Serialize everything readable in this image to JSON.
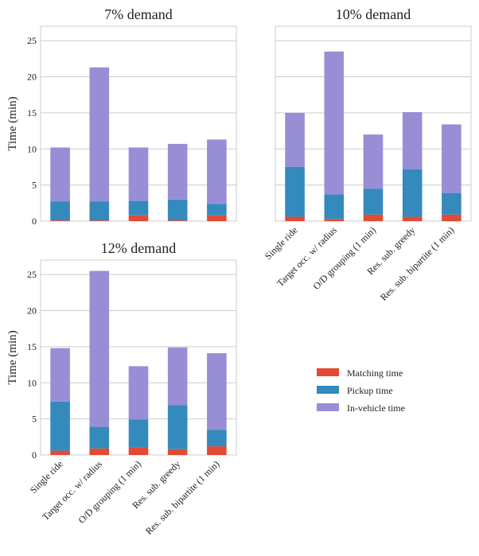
{
  "chart_data": [
    {
      "type": "bar",
      "stacked": true,
      "title": "7% demand",
      "ylabel": "Time (min)",
      "xlabel": "",
      "ylim": [
        0,
        27
      ],
      "yticks": [
        0,
        5,
        10,
        15,
        20,
        25
      ],
      "grid": true,
      "categories": [
        "Single ride",
        "Target occ. w/ radius",
        "O/D grouping (1 min)",
        "Res. sub. greedy",
        "Res. sub. bipartite (1 min)"
      ],
      "show_category_labels": false,
      "show_ytick_labels": true,
      "series": [
        {
          "name": "Matching time",
          "values": [
            0.1,
            0.1,
            0.8,
            0.1,
            0.8
          ]
        },
        {
          "name": "Pickup time",
          "values": [
            2.6,
            2.6,
            2.0,
            2.9,
            1.6
          ]
        },
        {
          "name": "In-vehicle time",
          "values": [
            7.5,
            18.6,
            7.4,
            7.7,
            8.9
          ]
        }
      ]
    },
    {
      "type": "bar",
      "stacked": true,
      "title": "10% demand",
      "ylabel": "",
      "xlabel": "",
      "ylim": [
        0,
        27
      ],
      "yticks": [
        0,
        5,
        10,
        15,
        20,
        25
      ],
      "grid": true,
      "categories": [
        "Single ride",
        "Target occ. w/ radius",
        "O/D grouping (1 min)",
        "Res. sub. greedy",
        "Res. sub. bipartite (1 min)"
      ],
      "show_category_labels": true,
      "show_ytick_labels": false,
      "series": [
        {
          "name": "Matching time",
          "values": [
            0.6,
            0.3,
            0.9,
            0.6,
            0.9
          ]
        },
        {
          "name": "Pickup time",
          "values": [
            6.9,
            3.4,
            3.6,
            6.6,
            3.0
          ]
        },
        {
          "name": "In-vehicle time",
          "values": [
            7.5,
            19.8,
            7.5,
            7.9,
            9.5
          ]
        }
      ]
    },
    {
      "type": "bar",
      "stacked": true,
      "title": "12% demand",
      "ylabel": "Time (min)",
      "xlabel": "",
      "ylim": [
        0,
        27
      ],
      "yticks": [
        0,
        5,
        10,
        15,
        20,
        25
      ],
      "grid": true,
      "categories": [
        "Single ride",
        "Target occ. w/ radius",
        "O/D grouping (1 min)",
        "Res. sub. greedy",
        "Res. sub. bipartite (1 min)"
      ],
      "show_category_labels": true,
      "show_ytick_labels": true,
      "series": [
        {
          "name": "Matching time",
          "values": [
            0.6,
            0.9,
            1.0,
            0.8,
            1.2
          ]
        },
        {
          "name": "Pickup time",
          "values": [
            6.8,
            3.0,
            3.9,
            6.1,
            2.3
          ]
        },
        {
          "name": "In-vehicle time",
          "values": [
            7.4,
            21.6,
            7.4,
            8.0,
            10.6
          ]
        }
      ]
    }
  ],
  "legend": {
    "placement": "bottom-right",
    "entries": [
      {
        "name": "Matching time",
        "color": "#e24a33"
      },
      {
        "name": "Pickup time",
        "color": "#348abd"
      },
      {
        "name": "In-vehicle time",
        "color": "#988ed5"
      }
    ]
  },
  "colors": {
    "Matching time": "#e24a33",
    "Pickup time": "#348abd",
    "In-vehicle time": "#988ed5"
  }
}
